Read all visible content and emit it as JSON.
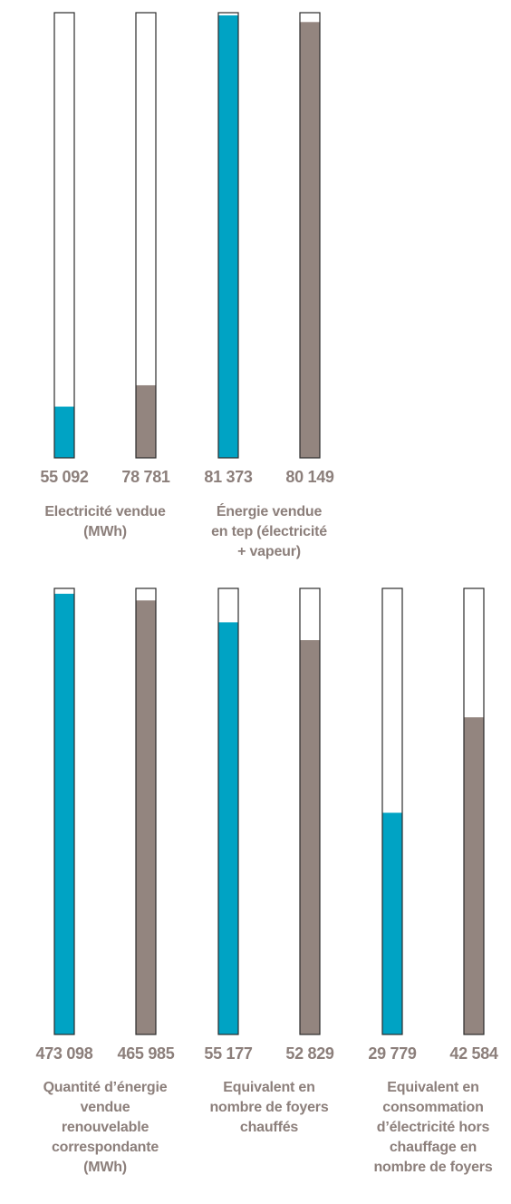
{
  "chart_data": [
    {
      "type": "bar",
      "orientation": "vertical",
      "groups": [
        {
          "label": [
            "Electricité vendue",
            "(MWh)"
          ],
          "bars": [
            {
              "value": "55 092",
              "numeric": 55092,
              "fill_fraction": 0.115,
              "color": "#00a3c4"
            },
            {
              "value": "78 781",
              "numeric": 78781,
              "fill_fraction": 0.163,
              "color": "#93857f"
            }
          ]
        },
        {
          "label": [
            "Énergie vendue",
            "en tep (électricité",
            "+ vapeur)"
          ],
          "bars": [
            {
              "value": "81 373",
              "numeric": 81373,
              "fill_fraction": 0.994,
              "color": "#00a3c4"
            },
            {
              "value": "80 149",
              "numeric": 80149,
              "fill_fraction": 0.979,
              "color": "#93857f"
            }
          ]
        }
      ]
    },
    {
      "type": "bar",
      "orientation": "vertical",
      "groups": [
        {
          "label": [
            "Quantité d’énergie",
            "vendue",
            "renouvelable",
            "correspondante",
            "(MWh)"
          ],
          "bars": [
            {
              "value": "473 098",
              "numeric": 473098,
              "fill_fraction": 0.988,
              "color": "#00a3c4"
            },
            {
              "value": "465 985",
              "numeric": 465985,
              "fill_fraction": 0.973,
              "color": "#93857f"
            }
          ]
        },
        {
          "label": [
            "Equivalent en",
            "nombre de foyers",
            "chauffés"
          ],
          "bars": [
            {
              "value": "55 177",
              "numeric": 55177,
              "fill_fraction": 0.924,
              "color": "#00a3c4"
            },
            {
              "value": "52 829",
              "numeric": 52829,
              "fill_fraction": 0.884,
              "color": "#93857f"
            }
          ]
        },
        {
          "label": [
            "Equivalent en",
            "consommation",
            "d’électricité hors",
            "chauffage en",
            "nombre de foyers"
          ],
          "bars": [
            {
              "value": "29 779",
              "numeric": 29779,
              "fill_fraction": 0.497,
              "color": "#00a3c4"
            },
            {
              "value": "42 584",
              "numeric": 42584,
              "fill_fraction": 0.711,
              "color": "#93857f"
            }
          ]
        }
      ]
    }
  ]
}
